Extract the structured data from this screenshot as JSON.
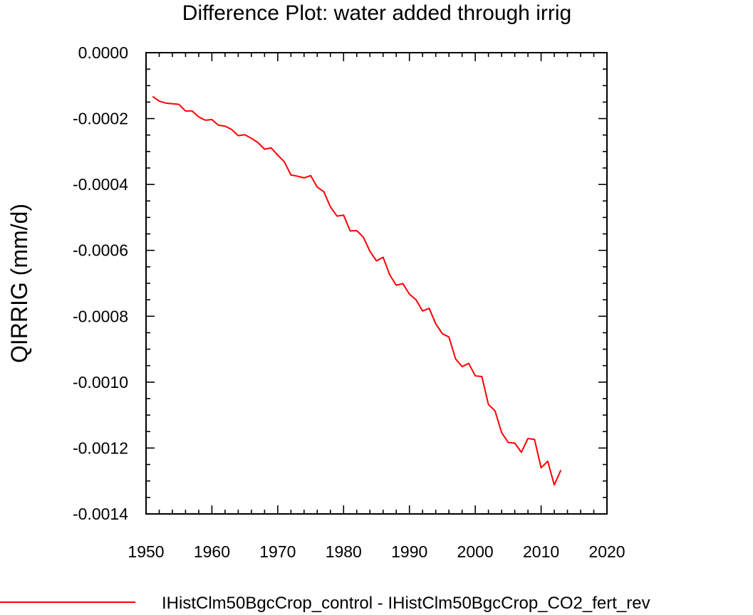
{
  "chart_data": {
    "type": "line",
    "title": "Difference Plot: water added through irrig",
    "xlabel": "",
    "ylabel": "QIRRIG  (mm/d)",
    "xlim": [
      1950,
      2020
    ],
    "ylim": [
      -0.0014,
      0.0
    ],
    "x_major_ticks": [
      1950,
      1960,
      1970,
      1980,
      1990,
      2000,
      2010,
      2020
    ],
    "x_tick_labels": [
      "1950",
      "1960",
      "1970",
      "1980",
      "1990",
      "2000",
      "2010",
      "2020"
    ],
    "x_minor_step": 2,
    "y_major_ticks": [
      0.0,
      -0.0002,
      -0.0004,
      -0.0006,
      -0.0008,
      -0.001,
      -0.0012,
      -0.0014
    ],
    "y_tick_labels": [
      "0.0000",
      "-0.0002",
      "-0.0004",
      "-0.0006",
      "-0.0008",
      "-0.0010",
      "-0.0012",
      "-0.0014"
    ],
    "y_minor_step": 5e-05,
    "grid": false,
    "legend_position": "bottom",
    "series": [
      {
        "name": "IHistClm50BgcCrop_control - IHistClm50BgcCrop_CO2_fert_rev",
        "color": "#ff0000",
        "x": [
          1951,
          1952,
          1953,
          1954,
          1955,
          1956,
          1957,
          1958,
          1959,
          1960,
          1961,
          1962,
          1963,
          1964,
          1965,
          1966,
          1967,
          1968,
          1969,
          1970,
          1971,
          1972,
          1973,
          1974,
          1975,
          1976,
          1977,
          1978,
          1979,
          1980,
          1981,
          1982,
          1983,
          1984,
          1985,
          1986,
          1987,
          1988,
          1989,
          1990,
          1991,
          1992,
          1993,
          1994,
          1995,
          1996,
          1997,
          1998,
          1999,
          2000,
          2001,
          2002,
          2003,
          2004,
          2005,
          2006,
          2007,
          2008,
          2009,
          2010,
          2011,
          2012,
          2013
        ],
        "y": [
          -0.000133,
          -0.000147,
          -0.000153,
          -0.000155,
          -0.000157,
          -0.000177,
          -0.000177,
          -0.000195,
          -0.000205,
          -0.000203,
          -0.00022,
          -0.000223,
          -0.000233,
          -0.000252,
          -0.000249,
          -0.00026,
          -0.000273,
          -0.000293,
          -0.000289,
          -0.000311,
          -0.000331,
          -0.000371,
          -0.000375,
          -0.00038,
          -0.000373,
          -0.000408,
          -0.000422,
          -0.000468,
          -0.000496,
          -0.000493,
          -0.000541,
          -0.00054,
          -0.00056,
          -0.000603,
          -0.000632,
          -0.000621,
          -0.000674,
          -0.000706,
          -0.000701,
          -0.000733,
          -0.00075,
          -0.000784,
          -0.000776,
          -0.000823,
          -0.000853,
          -0.000863,
          -0.000929,
          -0.000953,
          -0.000943,
          -0.000981,
          -0.000983,
          -0.001068,
          -0.001087,
          -0.001153,
          -0.001183,
          -0.001185,
          -0.001213,
          -0.001171,
          -0.001174,
          -0.00126,
          -0.00124,
          -0.001312,
          -0.001267
        ]
      }
    ]
  }
}
